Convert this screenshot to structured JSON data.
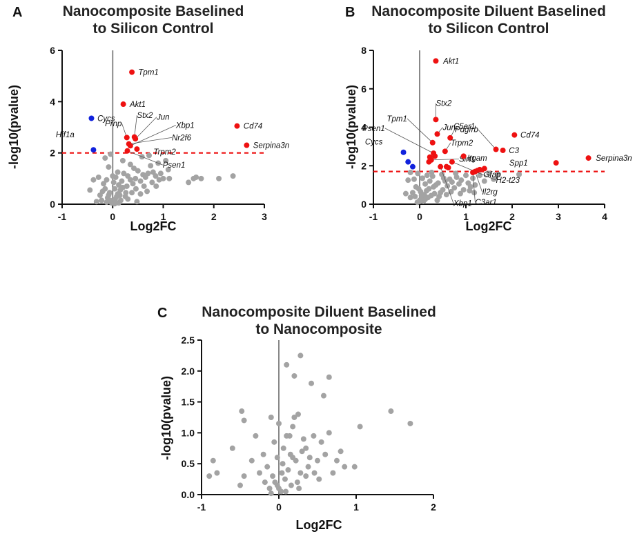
{
  "colors": {
    "up": "#ee1111",
    "down": "#1122dd",
    "ns": "#a3a3a3",
    "threshold": "#ee1111",
    "axis": "#111111",
    "zero_line": "#888888"
  },
  "chart_data": [
    {
      "type": "scatter",
      "panel": "A",
      "title": [
        "Nanocomposite Baselined",
        "to Silicon Control"
      ],
      "xlabel": "Log2FC",
      "ylabel": "-log10(pvalue)",
      "xlim": [
        -1,
        3
      ],
      "ylim": [
        0,
        6
      ],
      "xticks": [
        -1,
        0,
        1,
        2,
        3
      ],
      "yticks": [
        0,
        2,
        4,
        6
      ],
      "threshold": 2.0,
      "labeled_points": [
        {
          "gene": "Tpm1",
          "x": 0.38,
          "y": 5.15,
          "color": "up",
          "label_dx": 0.1,
          "label_dy": 0,
          "leader": false
        },
        {
          "gene": "Akt1",
          "x": 0.21,
          "y": 3.9,
          "color": "up",
          "label_dx": 0.1,
          "label_dy": 0,
          "leader": false
        },
        {
          "gene": "Cycs",
          "x": -0.42,
          "y": 3.35,
          "color": "down",
          "label_dx": 0.09,
          "label_dy": 0,
          "leader": false
        },
        {
          "gene": "Cd74",
          "x": 2.46,
          "y": 3.05,
          "color": "up",
          "label_dx": 0.1,
          "label_dy": 0,
          "leader": false
        },
        {
          "gene": "Serpina3n",
          "x": 2.65,
          "y": 2.3,
          "color": "up",
          "label_dx": 0.1,
          "label_dy": 0,
          "leader": false
        },
        {
          "gene": "Hif1a",
          "x": -0.38,
          "y": 2.12,
          "color": "down",
          "label_dx": -0.35,
          "label_dy": 0.6,
          "leader": false
        },
        {
          "gene": "Prnp",
          "x": 0.28,
          "y": 2.6,
          "color": "up",
          "label_dx": -0.1,
          "label_dy": 0.55,
          "leader": true
        },
        {
          "gene": "Stx2",
          "x": 0.43,
          "y": 2.62,
          "color": "up",
          "label_dx": 0.05,
          "label_dy": 0.85,
          "leader": true
        },
        {
          "gene": "Jun",
          "x": 0.45,
          "y": 2.55,
          "color": "up",
          "label_dx": 0.42,
          "label_dy": 0.85,
          "leader": true
        },
        {
          "gene": "Xbp1",
          "x": 0.35,
          "y": 2.28,
          "color": "up",
          "label_dx": 0.9,
          "label_dy": 0.8,
          "leader": true
        },
        {
          "gene": "Nr2f6",
          "x": 0.32,
          "y": 2.35,
          "color": "up",
          "label_dx": 0.85,
          "label_dy": 0.25,
          "leader": true
        },
        {
          "gene": "Trpm2",
          "x": 0.48,
          "y": 2.15,
          "color": "up",
          "label_dx": 0.3,
          "label_dy": -0.1,
          "leader": false
        },
        {
          "gene": "Psen1",
          "x": 0.29,
          "y": 2.08,
          "color": "up",
          "label_dx": 0.7,
          "label_dy": -0.55,
          "leader": true
        }
      ],
      "points_ns": [
        [
          -0.02,
          0.05
        ],
        [
          0.0,
          0.1
        ],
        [
          -0.05,
          0.15
        ],
        [
          0.05,
          0.2
        ],
        [
          -0.1,
          0.25
        ],
        [
          0.08,
          0.3
        ],
        [
          -0.08,
          0.35
        ],
        [
          0.1,
          0.4
        ],
        [
          -0.2,
          0.5
        ],
        [
          0.15,
          0.55
        ],
        [
          -0.15,
          0.6
        ],
        [
          0.2,
          0.65
        ],
        [
          0.25,
          0.3
        ],
        [
          -0.25,
          0.35
        ],
        [
          0.12,
          0.75
        ],
        [
          0.02,
          0.85
        ],
        [
          -0.12,
          0.95
        ],
        [
          0.06,
          1.05
        ],
        [
          -0.18,
          0.8
        ],
        [
          0.18,
          0.9
        ],
        [
          0.22,
          1.2
        ],
        [
          0.3,
          1.1
        ],
        [
          0.35,
          0.95
        ],
        [
          0.28,
          0.7
        ],
        [
          0.4,
          0.8
        ],
        [
          0.45,
          1.0
        ],
        [
          0.5,
          1.3
        ],
        [
          0.55,
          0.9
        ],
        [
          0.6,
          1.15
        ],
        [
          0.65,
          1.05
        ],
        [
          0.7,
          1.2
        ],
        [
          0.75,
          1.5
        ],
        [
          0.8,
          1.25
        ],
        [
          0.85,
          1.1
        ],
        [
          0.9,
          1.6
        ],
        [
          0.95,
          1.2
        ],
        [
          1.0,
          1.0
        ],
        [
          1.05,
          1.7
        ],
        [
          1.1,
          1.35
        ],
        [
          1.5,
          0.85
        ],
        [
          1.6,
          1.0
        ],
        [
          1.65,
          1.05
        ],
        [
          1.75,
          1.0
        ],
        [
          2.1,
          1.0
        ],
        [
          2.38,
          1.1
        ],
        [
          -0.45,
          0.55
        ],
        [
          -0.32,
          0.1
        ],
        [
          -0.28,
          1.05
        ],
        [
          -0.22,
          0.15
        ],
        [
          -0.38,
          0.95
        ],
        [
          -0.15,
          1.8
        ],
        [
          -0.08,
          1.45
        ],
        [
          0.0,
          1.1
        ],
        [
          0.04,
          0.6
        ],
        [
          -0.06,
          0.45
        ],
        [
          0.12,
          0.05
        ],
        [
          0.16,
          0.15
        ],
        [
          0.3,
          0.2
        ],
        [
          0.38,
          0.45
        ],
        [
          0.46,
          0.6
        ],
        [
          0.55,
          0.4
        ],
        [
          0.62,
          0.7
        ],
        [
          0.68,
          0.5
        ],
        [
          0.78,
          0.85
        ],
        [
          0.86,
          0.7
        ],
        [
          0.92,
          0.95
        ],
        [
          1.12,
          1.0
        ],
        [
          0.35,
          1.55
        ],
        [
          0.42,
          1.4
        ],
        [
          0.58,
          1.85
        ],
        [
          0.72,
          1.9
        ],
        [
          0.2,
          1.7
        ],
        [
          0.1,
          1.25
        ],
        [
          -0.04,
          1.95
        ],
        [
          0.48,
          0.1
        ],
        [
          0.26,
          0.45
        ],
        [
          0.14,
          0.35
        ],
        [
          0.04,
          0.02
        ],
        [
          -0.12,
          0.08
        ]
      ]
    },
    {
      "type": "scatter",
      "panel": "B",
      "title": [
        "Nanocomposite Diluent Baselined",
        "to Silicon Control"
      ],
      "xlabel": "Log2FC",
      "ylabel": "-log10(pvalue)",
      "xlim": [
        -1,
        4
      ],
      "ylim": [
        0,
        8
      ],
      "xticks": [
        -1,
        0,
        1,
        2,
        3,
        4
      ],
      "yticks": [
        0,
        2,
        4,
        6,
        8
      ],
      "threshold": 1.7,
      "labeled_points": [
        {
          "gene": "Akt1",
          "x": 0.35,
          "y": 7.45,
          "color": "up",
          "label_dx": 0.13,
          "label_dy": 0,
          "leader": false
        },
        {
          "gene": "Tpm1",
          "x": 0.28,
          "y": 3.2,
          "color": "up",
          "label_dx": -0.55,
          "label_dy": 1.25,
          "leader": true
        },
        {
          "gene": "Stx2",
          "x": 0.35,
          "y": 4.4,
          "color": "up",
          "label_dx": 0.0,
          "label_dy": 0.85,
          "leader": true
        },
        {
          "gene": "Jun",
          "x": 0.38,
          "y": 3.65,
          "color": "up",
          "label_dx": 0.12,
          "label_dy": 0.35,
          "leader": true
        },
        {
          "gene": "Pdgfrb",
          "x": 0.66,
          "y": 3.45,
          "color": "up",
          "label_dx": 0.1,
          "label_dy": 0.45,
          "leader": true
        },
        {
          "gene": "C5ar1",
          "x": 1.65,
          "y": 2.85,
          "color": "up",
          "label_dx": -0.45,
          "label_dy": 1.2,
          "leader": true
        },
        {
          "gene": "Cd74",
          "x": 2.05,
          "y": 3.6,
          "color": "up",
          "label_dx": 0.1,
          "label_dy": 0,
          "leader": false
        },
        {
          "gene": "C3",
          "x": 1.8,
          "y": 2.8,
          "color": "up",
          "label_dx": 0.1,
          "label_dy": 0,
          "leader": false
        },
        {
          "gene": "Trpm2",
          "x": 0.55,
          "y": 2.75,
          "color": "up",
          "label_dx": 0.12,
          "label_dy": 0.45,
          "leader": true
        },
        {
          "gene": "Psen1",
          "x": 0.3,
          "y": 2.65,
          "color": "up",
          "label_dx": -1.05,
          "label_dy": 1.3,
          "leader": true
        },
        {
          "gene": "Sirt1",
          "x": 0.25,
          "y": 2.3,
          "color": "up",
          "label_dx": 0.6,
          "label_dy": 0.05,
          "leader": true
        },
        {
          "gene": "Itgam",
          "x": 0.95,
          "y": 2.5,
          "color": "up",
          "label_dx": 0.05,
          "label_dy": -0.1,
          "leader": false
        },
        {
          "gene": "H2-t23",
          "x": 0.7,
          "y": 2.2,
          "color": "up",
          "label_dx": 0.95,
          "label_dy": -0.95,
          "leader": true
        },
        {
          "gene": "Gfap",
          "x": 1.3,
          "y": 1.8,
          "color": "up",
          "label_dx": 0.05,
          "label_dy": -0.25,
          "leader": false
        },
        {
          "gene": "Il2rg",
          "x": 1.2,
          "y": 1.7,
          "color": "up",
          "label_dx": 0.15,
          "label_dy": -1.05,
          "leader": true
        },
        {
          "gene": "C3ar1",
          "x": 1.15,
          "y": 1.65,
          "color": "up",
          "label_dx": 0.05,
          "label_dy": -1.55,
          "leader": true
        },
        {
          "gene": "Xbp1",
          "x": 0.45,
          "y": 1.95,
          "color": "up",
          "label_dx": 0.28,
          "label_dy": -1.9,
          "leader": true
        },
        {
          "gene": "Cycs",
          "x": -0.35,
          "y": 2.7,
          "color": "down",
          "label_dx": -0.42,
          "label_dy": 0.55,
          "leader": false
        },
        {
          "gene": "Spp1",
          "x": 2.95,
          "y": 2.15,
          "color": "up",
          "label_dx": -0.58,
          "label_dy": 0,
          "leader": false
        },
        {
          "gene": "Serpina3n",
          "x": 3.65,
          "y": 2.4,
          "color": "up",
          "label_dx": 0.13,
          "label_dy": 0,
          "leader": false
        }
      ],
      "extra_up": [
        [
          0.2,
          2.2
        ],
        [
          0.33,
          2.5
        ],
        [
          0.22,
          2.45
        ],
        [
          0.58,
          1.95
        ],
        [
          0.62,
          1.9
        ],
        [
          1.4,
          1.85
        ],
        [
          1.25,
          1.75
        ]
      ],
      "extra_down": [
        [
          -0.25,
          2.2
        ],
        [
          -0.15,
          1.95
        ]
      ],
      "points_ns": [
        [
          -0.05,
          0.1
        ],
        [
          0.0,
          0.2
        ],
        [
          0.05,
          0.3
        ],
        [
          -0.1,
          0.4
        ],
        [
          0.1,
          0.5
        ],
        [
          -0.15,
          0.6
        ],
        [
          0.15,
          0.7
        ],
        [
          0.2,
          0.8
        ],
        [
          -0.2,
          0.35
        ],
        [
          0.25,
          0.45
        ],
        [
          0.3,
          0.9
        ],
        [
          0.35,
          1.0
        ],
        [
          0.4,
          1.1
        ],
        [
          0.45,
          0.6
        ],
        [
          0.5,
          0.75
        ],
        [
          0.55,
          1.2
        ],
        [
          0.6,
          0.95
        ],
        [
          0.65,
          1.3
        ],
        [
          0.7,
          1.15
        ],
        [
          0.75,
          0.85
        ],
        [
          0.8,
          1.4
        ],
        [
          0.85,
          1.05
        ],
        [
          0.9,
          1.25
        ],
        [
          0.95,
          0.75
        ],
        [
          1.0,
          1.5
        ],
        [
          1.05,
          1.1
        ],
        [
          1.1,
          0.9
        ],
        [
          1.15,
          1.35
        ],
        [
          1.2,
          1.0
        ],
        [
          1.3,
          1.5
        ],
        [
          1.4,
          1.2
        ],
        [
          1.5,
          1.6
        ],
        [
          1.6,
          1.3
        ],
        [
          1.7,
          1.55
        ],
        [
          2.15,
          1.55
        ],
        [
          -0.3,
          0.55
        ],
        [
          -0.25,
          1.25
        ],
        [
          -0.2,
          1.65
        ],
        [
          -0.12,
          1.3
        ],
        [
          -0.08,
          0.9
        ],
        [
          0.02,
          0.65
        ],
        [
          0.08,
          0.15
        ],
        [
          0.12,
          0.25
        ],
        [
          0.18,
          0.35
        ],
        [
          0.22,
          1.2
        ],
        [
          0.28,
          1.45
        ],
        [
          0.32,
          0.55
        ],
        [
          0.38,
          0.2
        ],
        [
          0.42,
          0.4
        ],
        [
          0.48,
          1.55
        ],
        [
          0.52,
          1.35
        ],
        [
          0.58,
          0.5
        ],
        [
          0.68,
          0.65
        ],
        [
          0.78,
          1.6
        ],
        [
          0.88,
          0.55
        ],
        [
          1.08,
          0.7
        ],
        [
          1.18,
          0.6
        ],
        [
          0.12,
          1.05
        ],
        [
          0.06,
          1.35
        ],
        [
          -0.04,
          1.6
        ],
        [
          0.16,
          1.5
        ],
        [
          0.26,
          1.65
        ],
        [
          0.04,
          0.45
        ],
        [
          -0.02,
          0.8
        ]
      ]
    },
    {
      "type": "scatter",
      "panel": "C",
      "title": [
        "Nanocomposite Diluent Baselined",
        "to Nanocomposite"
      ],
      "xlabel": "Log2FC",
      "ylabel": "-log10(pvalue)",
      "xlim": [
        -1,
        2
      ],
      "ylim": [
        0,
        2.5
      ],
      "xticks": [
        -1,
        0,
        1,
        2
      ],
      "yticks": [
        0.0,
        0.5,
        1.0,
        1.5,
        2.0,
        2.5
      ],
      "tick_format": "fixed1",
      "points_ns": [
        [
          0.28,
          2.25
        ],
        [
          0.1,
          2.1
        ],
        [
          0.2,
          1.92
        ],
        [
          0.65,
          1.9
        ],
        [
          0.42,
          1.8
        ],
        [
          0.58,
          1.6
        ],
        [
          1.45,
          1.35
        ],
        [
          -0.48,
          1.35
        ],
        [
          -0.45,
          1.2
        ],
        [
          0.25,
          1.3
        ],
        [
          0.2,
          1.25
        ],
        [
          0.18,
          1.1
        ],
        [
          -0.1,
          1.25
        ],
        [
          1.05,
          1.1
        ],
        [
          1.7,
          1.15
        ],
        [
          0.0,
          1.15
        ],
        [
          0.1,
          0.95
        ],
        [
          0.32,
          0.9
        ],
        [
          0.45,
          0.95
        ],
        [
          0.55,
          0.85
        ],
        [
          0.65,
          1.0
        ],
        [
          0.75,
          0.55
        ],
        [
          0.85,
          0.45
        ],
        [
          0.98,
          0.45
        ],
        [
          0.3,
          0.7
        ],
        [
          0.35,
          0.75
        ],
        [
          0.4,
          0.6
        ],
        [
          0.5,
          0.55
        ],
        [
          0.6,
          0.65
        ],
        [
          0.15,
          0.65
        ],
        [
          0.22,
          0.55
        ],
        [
          0.05,
          0.5
        ],
        [
          -0.15,
          0.45
        ],
        [
          -0.25,
          0.35
        ],
        [
          -0.35,
          0.55
        ],
        [
          -0.45,
          0.3
        ],
        [
          -0.6,
          0.75
        ],
        [
          -0.85,
          0.55
        ],
        [
          -0.9,
          0.3
        ],
        [
          -0.8,
          0.35
        ],
        [
          -0.05,
          0.2
        ],
        [
          0.0,
          0.1
        ],
        [
          0.03,
          0.05
        ],
        [
          -0.08,
          0.3
        ],
        [
          0.08,
          0.25
        ],
        [
          0.12,
          0.4
        ],
        [
          0.16,
          0.15
        ],
        [
          0.24,
          0.2
        ],
        [
          -0.12,
          0.1
        ],
        [
          -0.18,
          0.2
        ],
        [
          0.28,
          0.35
        ],
        [
          0.38,
          0.45
        ],
        [
          0.46,
          0.35
        ],
        [
          0.52,
          0.25
        ],
        [
          0.04,
          0.35
        ],
        [
          -0.02,
          0.6
        ],
        [
          0.06,
          0.75
        ],
        [
          -0.06,
          0.85
        ],
        [
          0.14,
          0.95
        ],
        [
          -0.5,
          0.15
        ],
        [
          -0.2,
          0.65
        ],
        [
          0.7,
          0.35
        ],
        [
          0.8,
          0.7
        ],
        [
          -0.3,
          0.95
        ],
        [
          -0.02,
          0.15
        ],
        [
          0.09,
          0.05
        ],
        [
          0.18,
          0.6
        ],
        [
          0.35,
          0.3
        ],
        [
          -0.1,
          0.02
        ],
        [
          0.26,
          0.1
        ]
      ]
    }
  ]
}
